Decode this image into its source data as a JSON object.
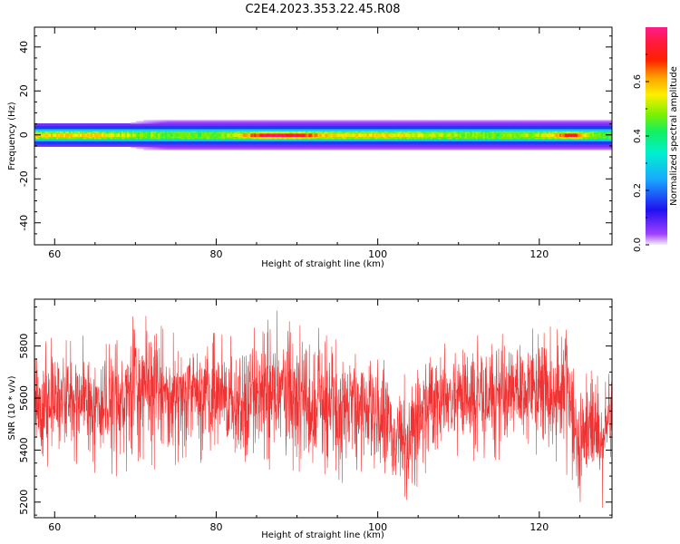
{
  "title": "C2E4.2023.353.22.45.R08",
  "chart_data": [
    {
      "type": "heatmap",
      "xlabel": "Height of straight line (km)",
      "ylabel": "Frequency (Hz)",
      "xlim": [
        57.5,
        129
      ],
      "ylim": [
        -50,
        49
      ],
      "xticks": [
        60,
        80,
        100,
        120
      ],
      "yticks": [
        -40,
        -20,
        0,
        20,
        40
      ],
      "colorbar": {
        "label": "Normalized spectral amplitude",
        "range": [
          0,
          0.8
        ],
        "ticks": [
          0.0,
          0.2,
          0.4,
          0.6
        ],
        "colormap": "gist_ncar-like (violet → blue → cyan → green → yellow → orange → red → magenta)"
      },
      "signal_band": {
        "center_hz": 0,
        "half_width_hz": 5
      },
      "amplitude_profile": {
        "x": [
          57.5,
          62,
          66,
          70,
          74,
          78,
          82,
          84,
          86,
          88,
          90,
          92,
          94,
          98,
          102,
          106,
          110,
          114,
          118,
          121,
          123,
          124,
          126,
          129
        ],
        "peak": [
          0.55,
          0.58,
          0.55,
          0.5,
          0.46,
          0.45,
          0.5,
          0.62,
          0.74,
          0.78,
          0.75,
          0.63,
          0.55,
          0.57,
          0.56,
          0.52,
          0.48,
          0.46,
          0.48,
          0.52,
          0.65,
          0.72,
          0.5,
          0.44
        ]
      }
    },
    {
      "type": "line",
      "xlabel": "Height of straight line (km)",
      "ylabel": "SNR (10 * v/v)",
      "xlim": [
        57.5,
        129
      ],
      "ylim": [
        5140,
        5980
      ],
      "xticks": [
        60,
        80,
        100,
        120
      ],
      "yticks": [
        5200,
        5400,
        5600,
        5800
      ],
      "color": "#f03232",
      "samples": 2400,
      "envelope": {
        "x": [
          57.5,
          60,
          62,
          65,
          68,
          71,
          74,
          77,
          80,
          83,
          86,
          88,
          90,
          92,
          93,
          94,
          96,
          98,
          100,
          102,
          103.5,
          105,
          107,
          110,
          113,
          116,
          119,
          121,
          122.5,
          123.5,
          124.5,
          126,
          128,
          129
        ],
        "upper": [
          5810,
          5840,
          5860,
          5830,
          5850,
          5960,
          5840,
          5860,
          5840,
          5830,
          5900,
          5950,
          5890,
          5850,
          5870,
          5830,
          5820,
          5830,
          5790,
          5700,
          5690,
          5780,
          5820,
          5850,
          5830,
          5860,
          5880,
          5860,
          5880,
          5970,
          5720,
          5700,
          5720,
          5770
        ],
        "lower": [
          5340,
          5330,
          5350,
          5320,
          5300,
          5330,
          5340,
          5380,
          5330,
          5320,
          5340,
          5300,
          5330,
          5280,
          5250,
          5270,
          5300,
          5320,
          5290,
          5240,
          5140,
          5270,
          5350,
          5380,
          5360,
          5370,
          5380,
          5370,
          5330,
          5300,
          5180,
          5240,
          5180,
          5300
        ]
      }
    }
  ]
}
